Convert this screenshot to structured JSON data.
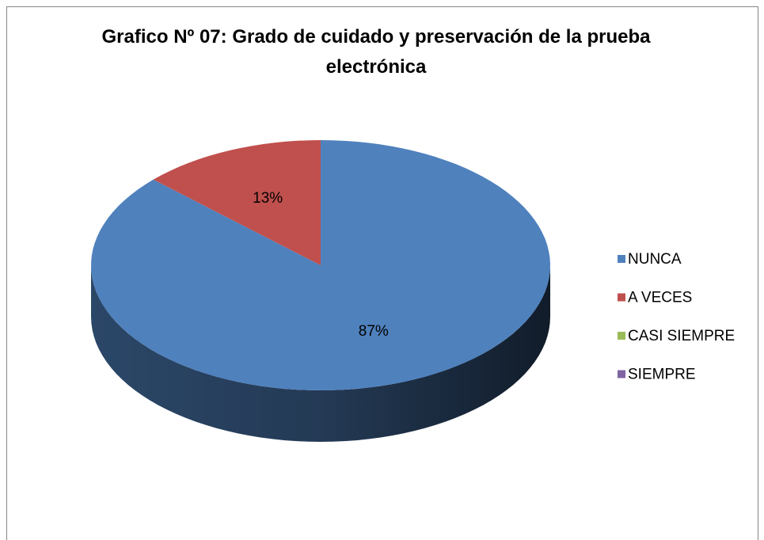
{
  "chart_data": {
    "type": "pie",
    "title": "Grafico Nº 07: Grado de cuidado y preservación de la prueba electrónica",
    "categories": [
      "NUNCA",
      "A VECES",
      "CASI SIEMPRE",
      "SIEMPRE"
    ],
    "values": [
      87,
      13,
      0,
      0
    ],
    "value_labels": [
      "87%",
      "13%",
      null,
      null
    ],
    "colors": [
      "#4f81bd",
      "#c0504d",
      "#9bbb59",
      "#8064a2"
    ],
    "legend": "right"
  }
}
